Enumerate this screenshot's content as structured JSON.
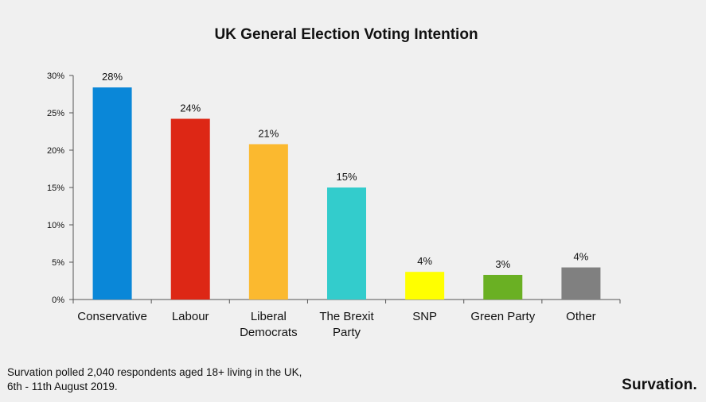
{
  "chart_data": {
    "type": "bar",
    "title": "UK General Election Voting Intention",
    "categories": [
      [
        "Conservative"
      ],
      [
        "Labour"
      ],
      [
        "Liberal",
        "Democrats"
      ],
      [
        "The Brexit",
        "Party"
      ],
      [
        "SNP"
      ],
      [
        "Green Party"
      ],
      [
        "Other"
      ]
    ],
    "values": [
      28.4,
      24.2,
      20.8,
      15,
      3.7,
      3.3,
      4.3
    ],
    "data_labels": [
      "28%",
      "24%",
      "21%",
      "15%",
      "4%",
      "3%",
      "4%"
    ],
    "colors": [
      "#0a87d8",
      "#dd2715",
      "#fbb92f",
      "#33cccc",
      "#ffff00",
      "#6ab023",
      "#808080"
    ],
    "ylim": [
      0,
      30
    ],
    "yticks": [
      0,
      5,
      10,
      15,
      20,
      25,
      30
    ],
    "ytick_labels": [
      "0%",
      "5%",
      "10%",
      "15%",
      "20%",
      "25%",
      "30%"
    ],
    "xlabel": "",
    "ylabel": "",
    "grid": false,
    "legend": "none"
  },
  "footnote": {
    "line1": "Survation polled 2,040 respondents aged 18+ living in the UK,",
    "line2": "6th - 11th August 2019."
  },
  "brand": "Survation."
}
